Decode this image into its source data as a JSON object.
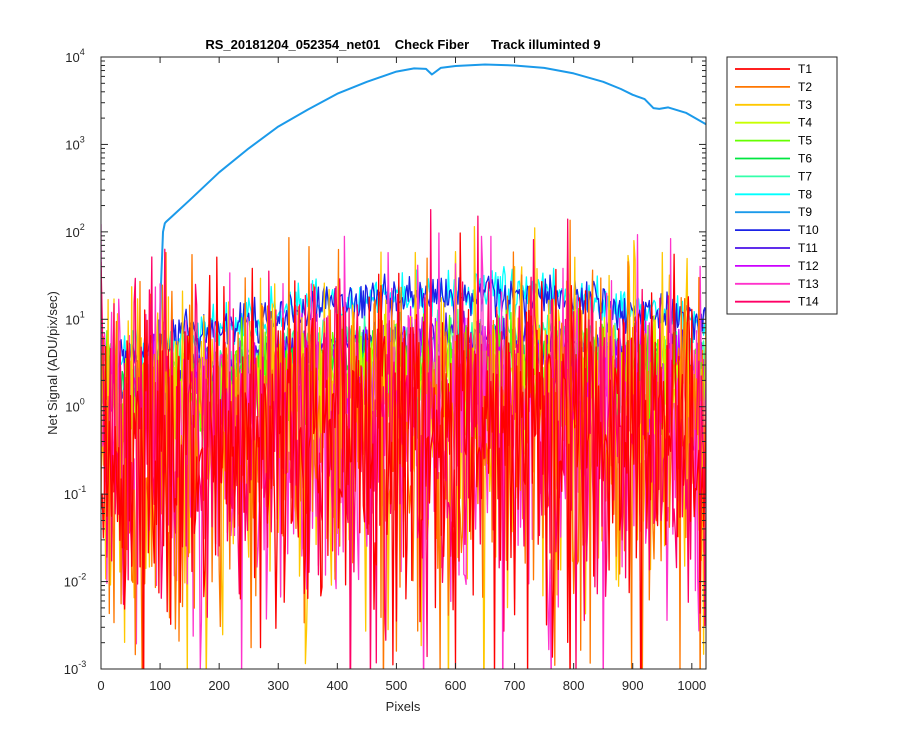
{
  "chart_data": {
    "type": "line",
    "title": "RS_20181204_052354_net01    Check Fiber      Track illuminted 9",
    "xlabel": "Pixels",
    "ylabel": "Net Signal (ADU/pix/sec)",
    "xlim": [
      0,
      1024
    ],
    "ylim": [
      0.001,
      10000
    ],
    "yscale": "log",
    "xticks": [
      "0",
      "100",
      "200",
      "300",
      "400",
      "500",
      "600",
      "700",
      "800",
      "900",
      "1000"
    ],
    "yticks": [
      {
        "base": "10",
        "exp": "-3"
      },
      {
        "base": "10",
        "exp": "-2"
      },
      {
        "base": "10",
        "exp": "-1"
      },
      {
        "base": "10",
        "exp": "0"
      },
      {
        "base": "10",
        "exp": "1"
      },
      {
        "base": "10",
        "exp": "2"
      },
      {
        "base": "10",
        "exp": "3"
      },
      {
        "base": "10",
        "exp": "4"
      }
    ],
    "grid": false,
    "legend_position": "outside-right",
    "series": [
      {
        "name": "T1",
        "color": "#ff0000",
        "peak": 0.7,
        "noise": "high"
      },
      {
        "name": "T2",
        "color": "#ff7700",
        "peak": 0.8,
        "noise": "high"
      },
      {
        "name": "T3",
        "color": "#ffc800",
        "peak": 0.9,
        "noise": "high"
      },
      {
        "name": "T4",
        "color": "#c8ff00",
        "peak": 2.0,
        "noise": "medium"
      },
      {
        "name": "T5",
        "color": "#66ff00",
        "peak": 2.6,
        "noise": "medium"
      },
      {
        "name": "T6",
        "color": "#00e640",
        "peak": 4.0,
        "noise": "low"
      },
      {
        "name": "T7",
        "color": "#33ffaa",
        "peak": 7.0,
        "noise": "low"
      },
      {
        "name": "T8",
        "color": "#00ffff",
        "peak": 20,
        "noise": "low"
      },
      {
        "name": "T9",
        "color": "#1b9aea",
        "peak": 8000,
        "noise": "none",
        "illuminated": true
      },
      {
        "name": "T10",
        "color": "#1a22e6",
        "peak": 19,
        "noise": "low"
      },
      {
        "name": "T11",
        "color": "#4a11e8",
        "peak": 6.0,
        "noise": "low"
      },
      {
        "name": "T12",
        "color": "#cc00ff",
        "peak": 2.8,
        "noise": "medium"
      },
      {
        "name": "T13",
        "color": "#ff33cc",
        "peak": 0.9,
        "noise": "high"
      },
      {
        "name": "T14",
        "color": "#ff0066",
        "peak": 0.8,
        "noise": "high"
      }
    ],
    "illuminated_track_profile": {
      "x": [
        98,
        101,
        105,
        108,
        110,
        120,
        150,
        200,
        250,
        300,
        350,
        400,
        450,
        500,
        530,
        550,
        560,
        575,
        600,
        650,
        700,
        750,
        800,
        850,
        880,
        900,
        920,
        935,
        945,
        960,
        990,
        1024
      ],
      "y": [
        2.5,
        20,
        100,
        125,
        130,
        150,
        230,
        480,
        900,
        1600,
        2500,
        3800,
        5200,
        6800,
        7400,
        7300,
        6300,
        7500,
        7900,
        8200,
        8000,
        7500,
        6500,
        5200,
        4300,
        3700,
        3300,
        2600,
        2550,
        2650,
        2300,
        1700
      ]
    }
  }
}
